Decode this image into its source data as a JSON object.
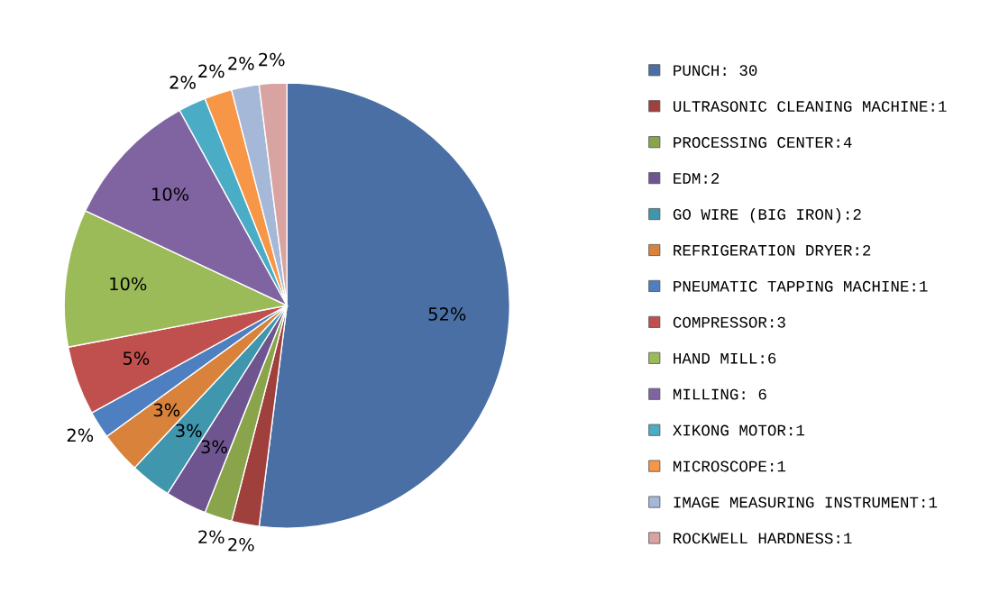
{
  "chart_data": {
    "type": "pie",
    "categories": [
      "PUNCH: 30",
      "ULTRASONIC CLEANING MACHINE:1",
      "PROCESSING CENTER:4",
      "EDM:2",
      "GO WIRE (BIG IRON):2",
      "REFRIGERATION DRYER:2",
      "PNEUMATIC TAPPING MACHINE:1",
      "COMPRESSOR:3",
      "HAND MILL:6",
      "MILLING: 6",
      "XIKONG MOTOR:1",
      "MICROSCOPE:1",
      "IMAGE MEASURING INSTRUMENT:1",
      "ROCKWELL HARDNESS:1"
    ],
    "values": [
      52,
      2,
      2,
      3,
      3,
      3,
      2,
      5,
      10,
      10,
      2,
      2,
      2,
      2
    ],
    "value_labels": [
      "52%",
      "2%",
      "2%",
      "3%",
      "3%",
      "3%",
      "2%",
      "5%",
      "10%",
      "10%",
      "2%",
      "2%",
      "2%",
      "2%"
    ],
    "colors": [
      "#4a6fa5",
      "#a0403d",
      "#8aa44c",
      "#6e5590",
      "#3f96ad",
      "#d9823b",
      "#4d7fc1",
      "#c0504d",
      "#9bbb59",
      "#8064a2",
      "#4bacc6",
      "#f79646",
      "#a5b8d8",
      "#d9a3a2"
    ],
    "legend": "right"
  }
}
